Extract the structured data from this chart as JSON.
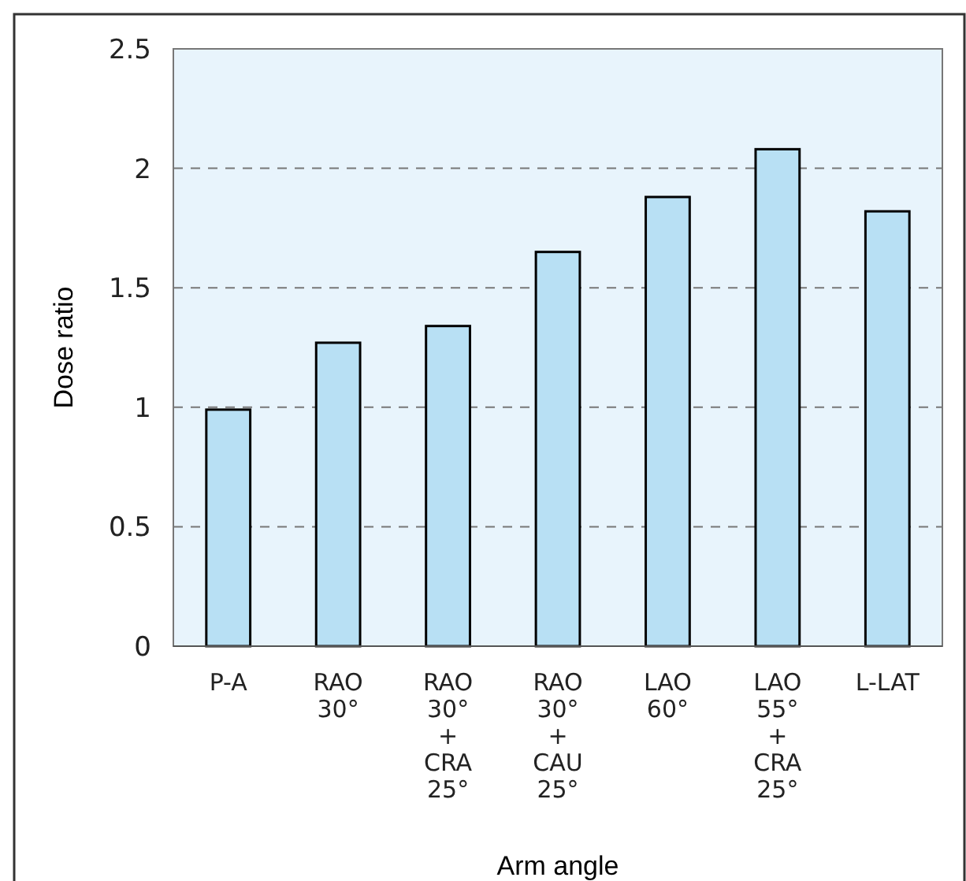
{
  "chart_data": {
    "type": "bar",
    "xlabel": "Arm angle",
    "ylabel": "Dose ratio",
    "categories": [
      "P-A",
      "RAO\n30°",
      "RAO\n30°\n+\nCRA\n25°",
      "RAO\n30°\n+\nCAU\n25°",
      "LAO\n60°",
      "LAO\n55°\n+\nCRA\n25°",
      "L-LAT"
    ],
    "values": [
      0.99,
      1.27,
      1.34,
      1.65,
      1.88,
      2.08,
      1.82
    ],
    "color": "#b8e0f4",
    "ylim": [
      0,
      2.5
    ],
    "yticks": [
      0,
      0.5,
      1,
      1.5,
      2,
      2.5
    ],
    "grid": "y"
  }
}
